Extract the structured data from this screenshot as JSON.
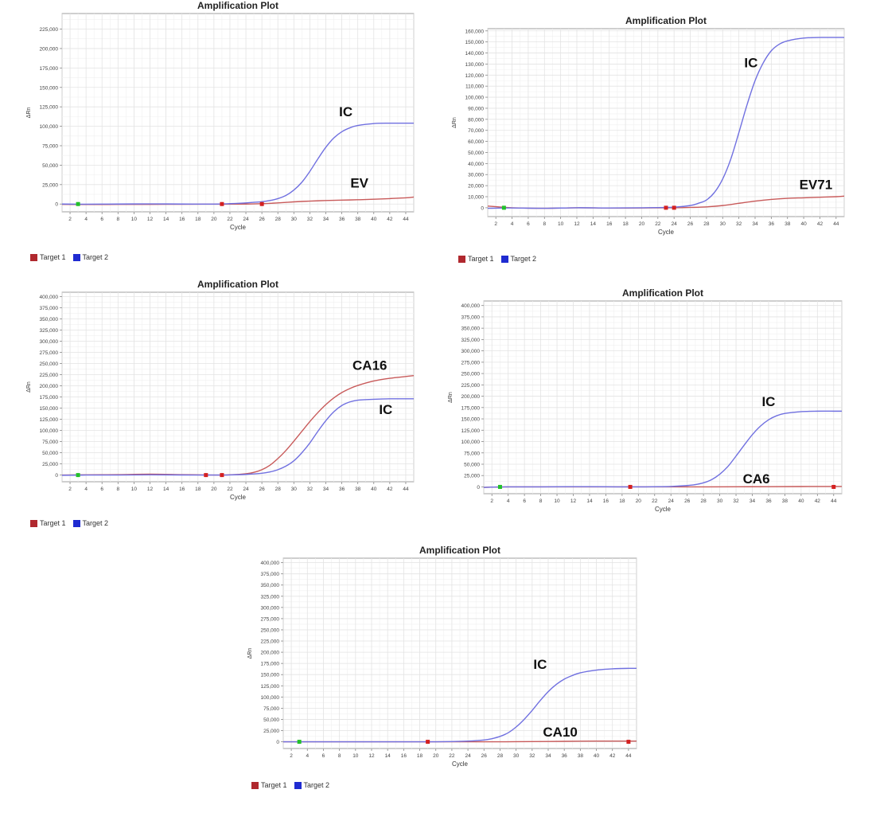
{
  "colors": {
    "target1": "#b0282e",
    "target2": "#1f2bd1",
    "ic_curve": "#7070e0",
    "target1_curve": "#c85a5a",
    "grid": "#e3e3e3",
    "axis": "#888888",
    "threshold_marker_green": "#22c02a",
    "threshold_marker_red": "#d42020"
  },
  "chart_data": [
    {
      "type": "line",
      "title": "Amplification Plot",
      "xlabel": "Cycle",
      "ylabel": "ΔRn",
      "xlim": [
        1,
        45
      ],
      "ylim": [
        -10000,
        245000
      ],
      "xticks": [
        2,
        4,
        6,
        8,
        10,
        12,
        14,
        16,
        18,
        20,
        22,
        24,
        26,
        28,
        30,
        32,
        34,
        36,
        38,
        40,
        42,
        44
      ],
      "yticks": [
        0,
        25000,
        50000,
        75000,
        100000,
        125000,
        150000,
        175000,
        200000,
        225000
      ],
      "ytick_labels": [
        "0",
        "25,000",
        "50,000",
        "75,000",
        "100,000",
        "125,000",
        "150,000",
        "175,000",
        "200,000",
        "225,000"
      ],
      "series": [
        {
          "name": "Target 1",
          "x": [
            1,
            4,
            8,
            12,
            16,
            20,
            24,
            26,
            28,
            30,
            32,
            34,
            36,
            38,
            40,
            42,
            44,
            45
          ],
          "y": [
            -500,
            -600,
            -500,
            -400,
            -300,
            -200,
            0,
            500,
            1500,
            2800,
            3800,
            4500,
            5000,
            5500,
            6200,
            7000,
            8000,
            9000
          ]
        },
        {
          "name": "Target 2",
          "x": [
            1,
            4,
            8,
            12,
            16,
            20,
            22,
            24,
            26,
            27,
            28,
            29,
            30,
            31,
            32,
            33,
            34,
            35,
            36,
            37,
            38,
            40,
            42,
            44,
            45
          ],
          "y": [
            0,
            -200,
            0,
            200,
            0,
            -100,
            500,
            1500,
            3000,
            4500,
            7000,
            11000,
            18000,
            28000,
            42000,
            58000,
            73000,
            85000,
            93000,
            98000,
            101000,
            103500,
            104000,
            104000,
            104000
          ]
        }
      ],
      "annotations": [
        {
          "text": "IC",
          "x": 36.5,
          "y": 113000
        },
        {
          "text": "EV",
          "x": 38.2,
          "y": 21000
        }
      ],
      "threshold_markers": [
        {
          "x": 3,
          "color": "green"
        },
        {
          "x": 21,
          "color": "red"
        },
        {
          "x": 26,
          "color": "red"
        }
      ],
      "legend": [
        "Target 1",
        "Target 2"
      ]
    },
    {
      "type": "line",
      "title": "Amplification Plot",
      "xlabel": "Cycle",
      "ylabel": "ΔRn",
      "xlim": [
        1,
        45
      ],
      "ylim": [
        -8000,
        162000
      ],
      "xticks": [
        2,
        4,
        6,
        8,
        10,
        12,
        14,
        16,
        18,
        20,
        22,
        24,
        26,
        28,
        30,
        32,
        34,
        36,
        38,
        40,
        42,
        44
      ],
      "yticks": [
        0,
        10000,
        20000,
        30000,
        40000,
        50000,
        60000,
        70000,
        80000,
        90000,
        100000,
        110000,
        120000,
        130000,
        140000,
        150000,
        160000
      ],
      "ytick_labels": [
        "0",
        "10,000",
        "20,000",
        "30,000",
        "40,000",
        "50,000",
        "60,000",
        "70,000",
        "80,000",
        "90,000",
        "100,000",
        "110,000",
        "120,000",
        "130,000",
        "140,000",
        "150,000",
        "160,000"
      ],
      "series": [
        {
          "name": "Target 1",
          "x": [
            1,
            4,
            8,
            12,
            16,
            20,
            24,
            26,
            28,
            30,
            32,
            34,
            36,
            38,
            40,
            42,
            44,
            45
          ],
          "y": [
            1500,
            0,
            -500,
            0,
            -300,
            -200,
            0,
            300,
            800,
            2000,
            4000,
            6000,
            7500,
            8500,
            9000,
            9500,
            10000,
            10500
          ]
        },
        {
          "name": "Target 2",
          "x": [
            1,
            4,
            8,
            12,
            16,
            20,
            24,
            26,
            27,
            28,
            29,
            30,
            31,
            32,
            33,
            34,
            35,
            36,
            37,
            38,
            40,
            42,
            44,
            45
          ],
          "y": [
            -500,
            -200,
            -500,
            0,
            -200,
            0,
            500,
            2000,
            4000,
            7000,
            14000,
            26000,
            44000,
            68000,
            93000,
            115000,
            131000,
            142000,
            148000,
            151000,
            153500,
            154000,
            154000,
            154000
          ]
        }
      ],
      "annotations": [
        {
          "text": "IC",
          "x": 33.5,
          "y": 127000
        },
        {
          "text": "EV71",
          "x": 41.5,
          "y": 17000
        }
      ],
      "threshold_markers": [
        {
          "x": 3,
          "color": "green"
        },
        {
          "x": 23,
          "color": "red"
        },
        {
          "x": 24,
          "color": "red"
        }
      ],
      "legend": [
        "Target 1",
        "Target 2"
      ]
    },
    {
      "type": "line",
      "title": "Amplification Plot",
      "xlabel": "Cycle",
      "ylabel": "ΔRn",
      "xlim": [
        1,
        45
      ],
      "ylim": [
        -15000,
        410000
      ],
      "xticks": [
        2,
        4,
        6,
        8,
        10,
        12,
        14,
        16,
        18,
        20,
        22,
        24,
        26,
        28,
        30,
        32,
        34,
        36,
        38,
        40,
        42,
        44
      ],
      "yticks": [
        0,
        25000,
        50000,
        75000,
        100000,
        125000,
        150000,
        175000,
        200000,
        225000,
        250000,
        275000,
        300000,
        325000,
        350000,
        375000,
        400000
      ],
      "ytick_labels": [
        "0",
        "25,000",
        "50,000",
        "75,000",
        "100,000",
        "125,000",
        "150,000",
        "175,000",
        "200,000",
        "225,000",
        "250,000",
        "275,000",
        "300,000",
        "325,000",
        "350,000",
        "375,000",
        "400,000"
      ],
      "series": [
        {
          "name": "Target 1",
          "x": [
            1,
            4,
            8,
            12,
            16,
            20,
            22,
            24,
            25,
            26,
            27,
            28,
            29,
            30,
            31,
            32,
            33,
            34,
            35,
            36,
            37,
            38,
            40,
            42,
            44,
            45
          ],
          "y": [
            0,
            500,
            1000,
            2000,
            1000,
            0,
            500,
            3000,
            6000,
            12000,
            22000,
            37000,
            55000,
            76000,
            98000,
            120000,
            140000,
            158000,
            173000,
            185000,
            194000,
            201000,
            211000,
            217000,
            221000,
            223000
          ]
        },
        {
          "name": "Target 2",
          "x": [
            1,
            4,
            8,
            12,
            16,
            20,
            22,
            24,
            26,
            27,
            28,
            29,
            30,
            31,
            32,
            33,
            34,
            35,
            36,
            37,
            38,
            40,
            42,
            44,
            45
          ],
          "y": [
            -500,
            0,
            0,
            500,
            200,
            0,
            300,
            1500,
            4000,
            7000,
            12000,
            20000,
            32000,
            50000,
            72000,
            98000,
            122000,
            142000,
            156000,
            164000,
            168000,
            170000,
            171000,
            171000,
            171000
          ]
        }
      ],
      "annotations": [
        {
          "text": "CA16",
          "x": 39.5,
          "y": 236000
        },
        {
          "text": "IC",
          "x": 41.5,
          "y": 137000
        }
      ],
      "threshold_markers": [
        {
          "x": 3,
          "color": "green"
        },
        {
          "x": 19,
          "color": "red"
        },
        {
          "x": 21,
          "color": "red"
        }
      ],
      "legend": [
        "Target 1",
        "Target 2"
      ]
    },
    {
      "type": "line",
      "title": "Amplification Plot",
      "xlabel": "Cycle",
      "ylabel": "ΔRn",
      "xlim": [
        1,
        45
      ],
      "ylim": [
        -15000,
        410000
      ],
      "xticks": [
        2,
        4,
        6,
        8,
        10,
        12,
        14,
        16,
        18,
        20,
        22,
        24,
        26,
        28,
        30,
        32,
        34,
        36,
        38,
        40,
        42,
        44
      ],
      "yticks": [
        0,
        25000,
        50000,
        75000,
        100000,
        125000,
        150000,
        175000,
        200000,
        225000,
        250000,
        275000,
        300000,
        325000,
        350000,
        375000,
        400000
      ],
      "ytick_labels": [
        "0",
        "25,000",
        "50,000",
        "75,000",
        "100,000",
        "125,000",
        "150,000",
        "175,000",
        "200,000",
        "225,000",
        "250,000",
        "275,000",
        "300,000",
        "325,000",
        "350,000",
        "375,000",
        "400,000"
      ],
      "series": [
        {
          "name": "Target 1",
          "x": [
            1,
            4,
            8,
            12,
            16,
            20,
            24,
            28,
            32,
            36,
            40,
            44,
            45
          ],
          "y": [
            -1000,
            0,
            0,
            0,
            0,
            0,
            0,
            0,
            200,
            500,
            800,
            1000,
            1000
          ]
        },
        {
          "name": "Target 2",
          "x": [
            1,
            4,
            8,
            12,
            16,
            20,
            22,
            24,
            26,
            27,
            28,
            29,
            30,
            31,
            32,
            33,
            34,
            35,
            36,
            37,
            38,
            40,
            42,
            44,
            45
          ],
          "y": [
            -1000,
            0,
            0,
            500,
            200,
            0,
            300,
            1000,
            3000,
            5000,
            9000,
            16000,
            28000,
            45000,
            68000,
            92000,
            115000,
            134000,
            148000,
            157000,
            162000,
            166000,
            167000,
            167000,
            167000
          ]
        }
      ],
      "annotations": [
        {
          "text": "IC",
          "x": 36,
          "y": 178000
        },
        {
          "text": "CA6",
          "x": 34.5,
          "y": 8000
        }
      ],
      "threshold_markers": [
        {
          "x": 3,
          "color": "green"
        },
        {
          "x": 19,
          "color": "red"
        },
        {
          "x": 44,
          "color": "red"
        }
      ],
      "legend": []
    },
    {
      "type": "line",
      "title": "Amplification Plot",
      "xlabel": "Cycle",
      "ylabel": "ΔRn",
      "xlim": [
        1,
        45
      ],
      "ylim": [
        -15000,
        410000
      ],
      "xticks": [
        2,
        4,
        6,
        8,
        10,
        12,
        14,
        16,
        18,
        20,
        22,
        24,
        26,
        28,
        30,
        32,
        34,
        36,
        38,
        40,
        42,
        44
      ],
      "yticks": [
        0,
        25000,
        50000,
        75000,
        100000,
        125000,
        150000,
        175000,
        200000,
        225000,
        250000,
        275000,
        300000,
        325000,
        350000,
        375000,
        400000
      ],
      "ytick_labels": [
        "0",
        "25,000",
        "50,000",
        "75,000",
        "100,000",
        "125,000",
        "150,000",
        "175,000",
        "200,000",
        "225,000",
        "250,000",
        "275,000",
        "300,000",
        "325,000",
        "350,000",
        "375,000",
        "400,000"
      ],
      "series": [
        {
          "name": "Target 1",
          "x": [
            1,
            4,
            8,
            12,
            16,
            20,
            24,
            28,
            32,
            36,
            40,
            44,
            45
          ],
          "y": [
            0,
            0,
            0,
            0,
            0,
            0,
            0,
            0,
            500,
            1000,
            1500,
            1500,
            1500
          ]
        },
        {
          "name": "Target 2",
          "x": [
            1,
            4,
            8,
            12,
            16,
            20,
            22,
            24,
            26,
            27,
            28,
            29,
            30,
            31,
            32,
            33,
            34,
            35,
            36,
            37,
            38,
            40,
            42,
            44,
            45
          ],
          "y": [
            0,
            0,
            0,
            0,
            0,
            0,
            500,
            1500,
            4000,
            7000,
            12000,
            20000,
            33000,
            50000,
            70000,
            92000,
            112000,
            128000,
            140000,
            148000,
            154000,
            160000,
            163000,
            164000,
            164000
          ]
        }
      ],
      "annotations": [
        {
          "text": "IC",
          "x": 33,
          "y": 163000
        },
        {
          "text": "CA10",
          "x": 35.5,
          "y": 12000
        }
      ],
      "threshold_markers": [
        {
          "x": 3,
          "color": "green"
        },
        {
          "x": 19,
          "color": "red"
        },
        {
          "x": 44,
          "color": "red"
        }
      ],
      "legend": [
        "Target 1",
        "Target 2"
      ]
    }
  ]
}
